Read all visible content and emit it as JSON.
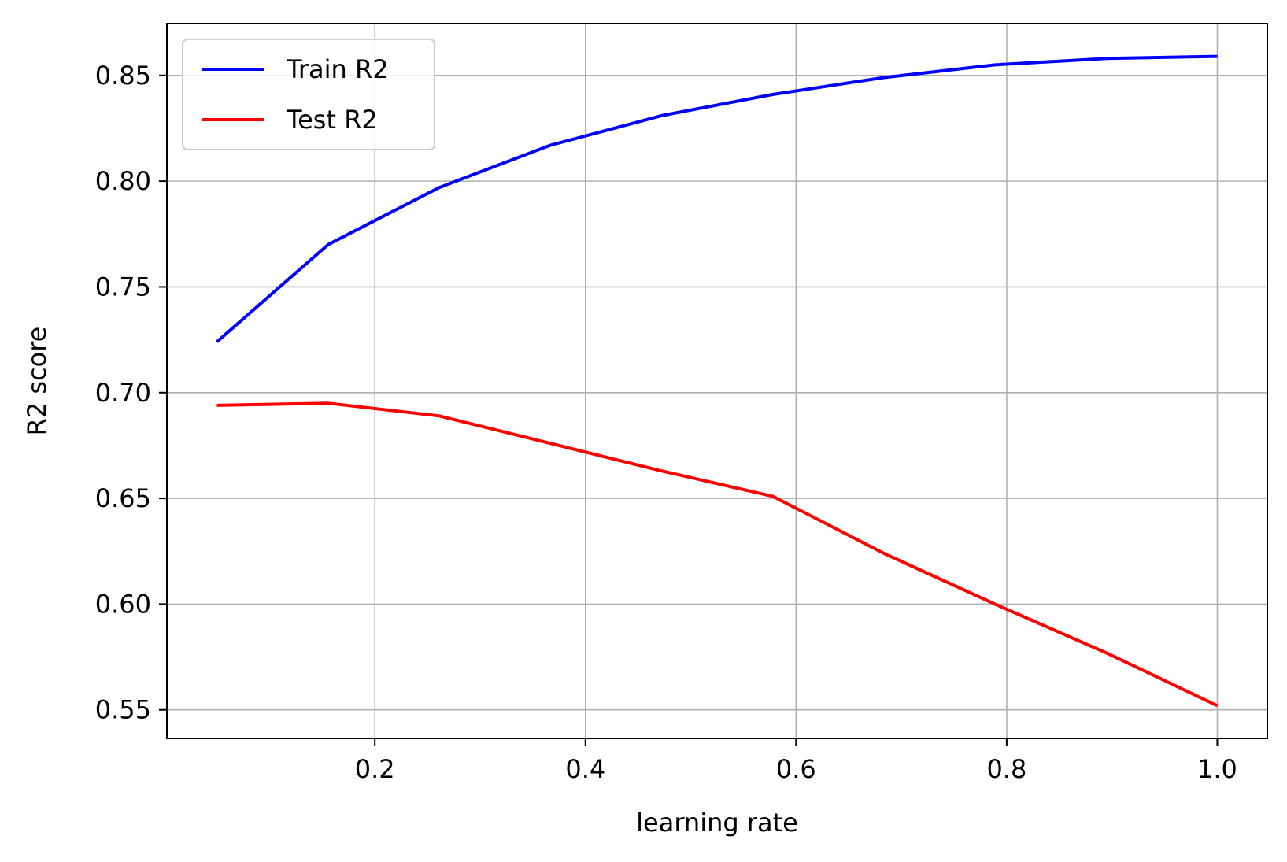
{
  "chart_data": {
    "type": "line",
    "title": "",
    "xlabel": "learning rate",
    "ylabel": "R2 score",
    "xlim": [
      0.0025,
      1.0475
    ],
    "ylim": [
      0.5365,
      0.8745
    ],
    "xticks": [
      0.2,
      0.4,
      0.6,
      0.8,
      1.0
    ],
    "xtick_labels": [
      "0.2",
      "0.4",
      "0.6",
      "0.8",
      "1.0"
    ],
    "yticks": [
      0.55,
      0.6,
      0.65,
      0.7,
      0.75,
      0.8,
      0.85
    ],
    "ytick_labels": [
      "0.55",
      "0.60",
      "0.65",
      "0.70",
      "0.75",
      "0.80",
      "0.85"
    ],
    "grid": true,
    "legend_position": "top-left",
    "x": [
      0.05,
      0.1556,
      0.2611,
      0.3667,
      0.4722,
      0.5778,
      0.6833,
      0.7889,
      0.8944,
      1.0
    ],
    "series": [
      {
        "name": "Train R2",
        "color": "#0000ff",
        "values": [
          0.724,
          0.77,
          0.797,
          0.817,
          0.831,
          0.841,
          0.849,
          0.855,
          0.858,
          0.859
        ]
      },
      {
        "name": "Test R2",
        "color": "#ff0000",
        "values": [
          0.694,
          0.695,
          0.689,
          0.676,
          0.663,
          0.651,
          0.624,
          0.6,
          0.577,
          0.552
        ]
      }
    ]
  }
}
